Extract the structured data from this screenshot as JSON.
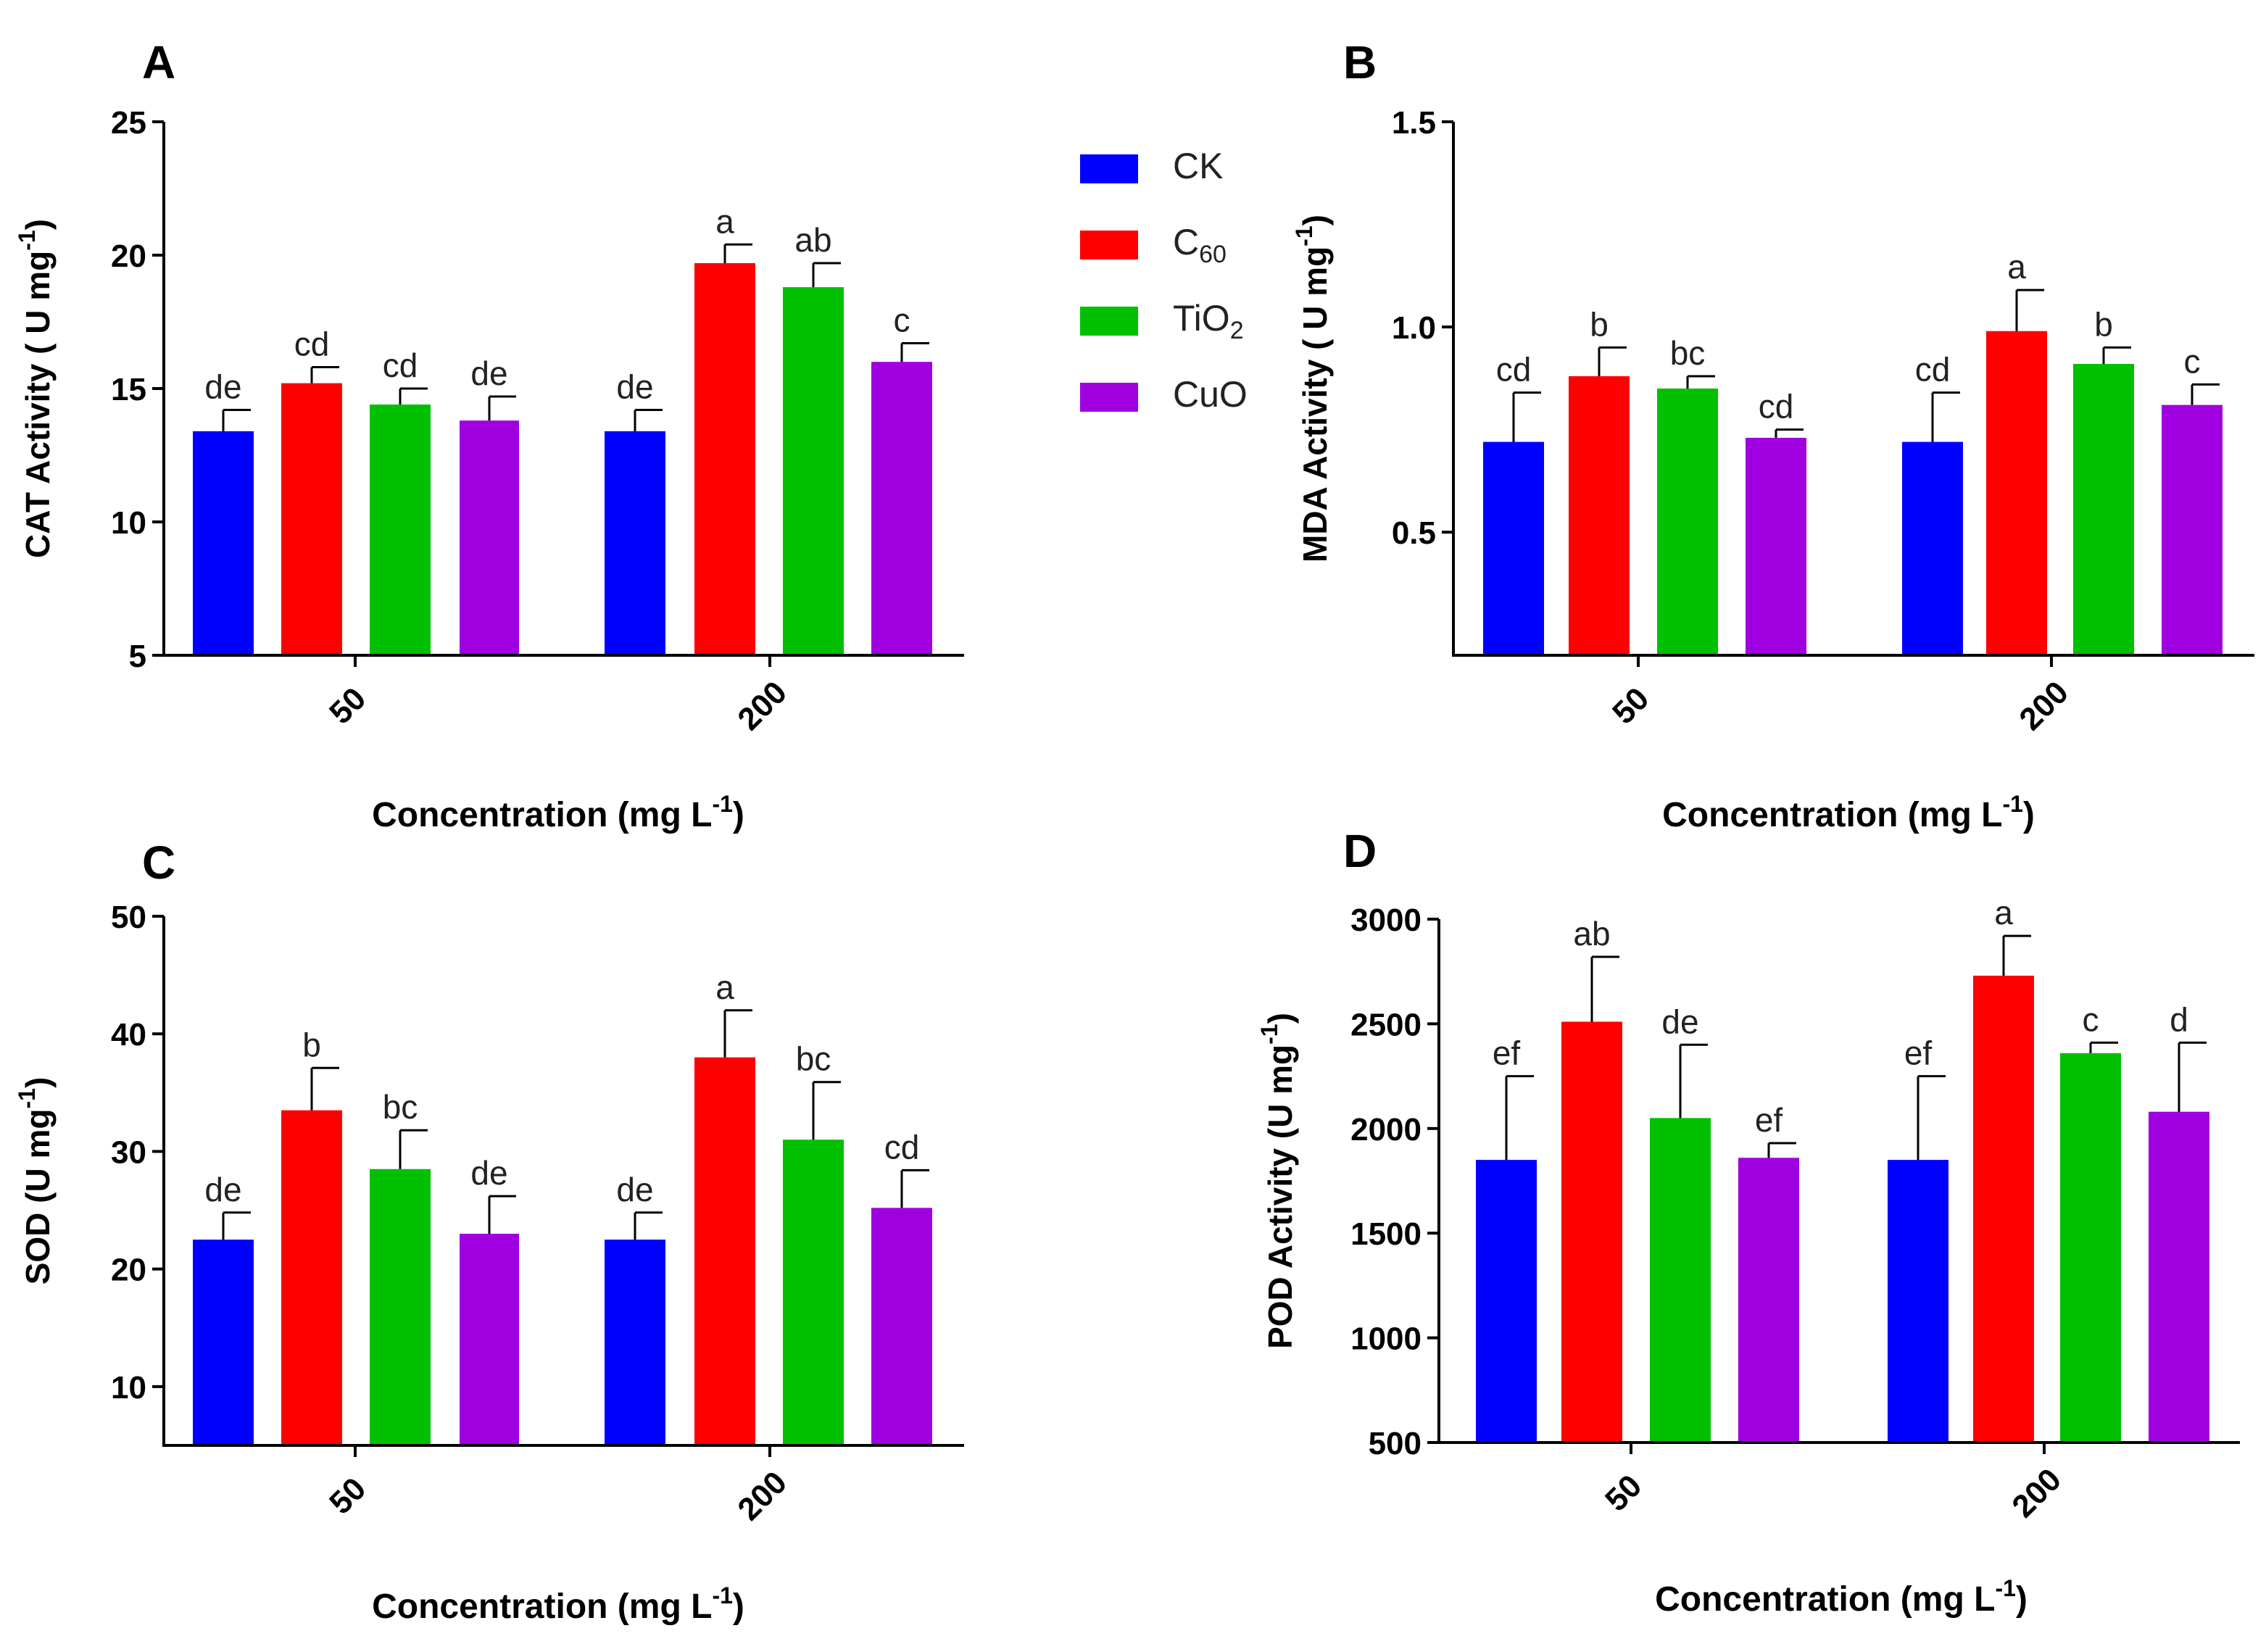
{
  "colors": {
    "CK": "#0000ff",
    "C60": "#ff0000",
    "TiO2": "#00c000",
    "CuO": "#a000e0"
  },
  "legend": [
    {
      "key": "CK",
      "base": "CK",
      "sub": ""
    },
    {
      "key": "C60",
      "base": "C",
      "sub": "60"
    },
    {
      "key": "TiO2",
      "base": "TiO",
      "sub": "2"
    },
    {
      "key": "CuO",
      "base": "CuO",
      "sub": ""
    }
  ],
  "chart_data": [
    {
      "panel": "A",
      "type": "bar",
      "ylabel": "CAT Activity ( U mg",
      "ylabel_sup": "-1",
      "ylabel_end": ")",
      "xlabel": "Concentration (mg L",
      "xlabel_sup": "-1",
      "xlabel_end": ")",
      "ylim": [
        5,
        25
      ],
      "yticks": [
        5,
        10,
        15,
        20,
        25
      ],
      "yticklabels": [
        "5",
        "10",
        "15",
        "20",
        "25"
      ],
      "categories": [
        "50",
        "200"
      ],
      "series": [
        {
          "name": "CK",
          "values": [
            13.4,
            13.4
          ],
          "errors": [
            0.8,
            0.8
          ],
          "letters": [
            "de",
            "de"
          ]
        },
        {
          "name": "C60",
          "values": [
            15.2,
            19.7
          ],
          "errors": [
            0.6,
            0.7
          ],
          "letters": [
            "cd",
            "a"
          ]
        },
        {
          "name": "TiO2",
          "values": [
            14.4,
            18.8
          ],
          "errors": [
            0.6,
            0.9
          ],
          "letters": [
            "cd",
            "ab"
          ]
        },
        {
          "name": "CuO",
          "values": [
            13.8,
            16.0
          ],
          "errors": [
            0.9,
            0.7
          ],
          "letters": [
            "de",
            "c"
          ]
        }
      ]
    },
    {
      "panel": "B",
      "type": "bar",
      "ylabel": "MDA Activity ( U mg",
      "ylabel_sup": "-1",
      "ylabel_end": ")",
      "xlabel": "Concentration (mg L",
      "xlabel_sup": "-1",
      "xlabel_end": ")",
      "ylim": [
        0.2,
        1.5
      ],
      "yticks": [
        0.5,
        1.0,
        1.5
      ],
      "yticklabels": [
        "0.5",
        "1.0",
        "1.5"
      ],
      "categories": [
        "50",
        "200"
      ],
      "series": [
        {
          "name": "CK",
          "values": [
            0.72,
            0.72
          ],
          "errors": [
            0.12,
            0.12
          ],
          "letters": [
            "cd",
            "cd"
          ]
        },
        {
          "name": "C60",
          "values": [
            0.88,
            0.99
          ],
          "errors": [
            0.07,
            0.1
          ],
          "letters": [
            "b",
            "a"
          ]
        },
        {
          "name": "TiO2",
          "values": [
            0.85,
            0.91
          ],
          "errors": [
            0.03,
            0.04
          ],
          "letters": [
            "bc",
            "b"
          ]
        },
        {
          "name": "CuO",
          "values": [
            0.73,
            0.81
          ],
          "errors": [
            0.02,
            0.05
          ],
          "letters": [
            "cd",
            "c"
          ]
        }
      ]
    },
    {
      "panel": "C",
      "type": "bar",
      "ylabel": "SOD (U mg",
      "ylabel_sup": "-1",
      "ylabel_end": ")",
      "xlabel": "Concentration (mg L",
      "xlabel_sup": "-1",
      "xlabel_end": ")",
      "ylim": [
        5,
        50
      ],
      "yticks": [
        10,
        20,
        30,
        40,
        50
      ],
      "yticklabels": [
        "10",
        "20",
        "30",
        "40",
        "50"
      ],
      "categories": [
        "50",
        "200"
      ],
      "series": [
        {
          "name": "CK",
          "values": [
            22.5,
            22.5
          ],
          "errors": [
            2.3,
            2.3
          ],
          "letters": [
            "de",
            "de"
          ]
        },
        {
          "name": "C60",
          "values": [
            33.5,
            38.0
          ],
          "errors": [
            3.6,
            4.0
          ],
          "letters": [
            "b",
            "a"
          ]
        },
        {
          "name": "TiO2",
          "values": [
            28.5,
            31.0
          ],
          "errors": [
            3.3,
            4.9
          ],
          "letters": [
            "bc",
            "bc"
          ]
        },
        {
          "name": "CuO",
          "values": [
            23.0,
            25.2
          ],
          "errors": [
            3.2,
            3.2
          ],
          "letters": [
            "de",
            "cd"
          ]
        }
      ]
    },
    {
      "panel": "D",
      "type": "bar",
      "ylabel": "POD Activity (U mg",
      "ylabel_sup": "-1",
      "ylabel_end": ")",
      "xlabel": "Concentration (mg L",
      "xlabel_sup": "-1",
      "xlabel_end": ")",
      "ylim": [
        500,
        3000
      ],
      "yticks": [
        500,
        1000,
        1500,
        2000,
        2500,
        3000
      ],
      "yticklabels": [
        "500",
        "1000",
        "1500",
        "2000",
        "2500",
        "3000"
      ],
      "categories": [
        "50",
        "200"
      ],
      "series": [
        {
          "name": "CK",
          "values": [
            1850,
            1850
          ],
          "errors": [
            400,
            400
          ],
          "letters": [
            "ef",
            "ef"
          ]
        },
        {
          "name": "C60",
          "values": [
            2510,
            2730
          ],
          "errors": [
            310,
            190
          ],
          "letters": [
            "ab",
            "a"
          ]
        },
        {
          "name": "TiO2",
          "values": [
            2050,
            2360
          ],
          "errors": [
            350,
            50
          ],
          "letters": [
            "de",
            "c"
          ]
        },
        {
          "name": "CuO",
          "values": [
            1860,
            2080
          ],
          "errors": [
            70,
            330
          ],
          "letters": [
            "ef",
            "d"
          ]
        }
      ]
    }
  ]
}
